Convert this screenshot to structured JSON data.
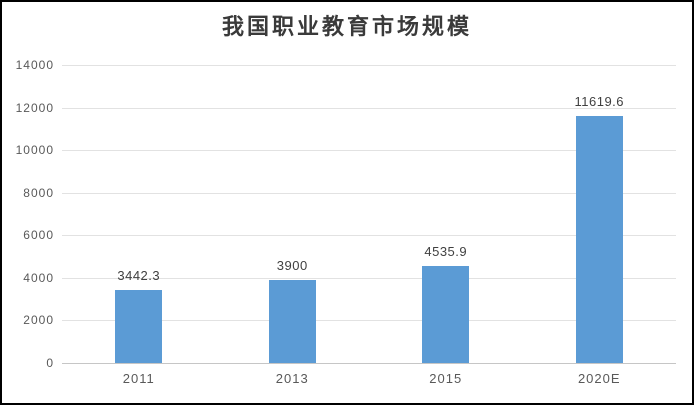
{
  "chart_data": {
    "type": "bar",
    "title": "我国职业教育市场规模",
    "categories": [
      "2011",
      "2013",
      "2015",
      "2020E"
    ],
    "values": [
      3442.3,
      3900,
      4535.9,
      11619.6
    ],
    "value_labels": [
      "3442.3",
      "3900",
      "4535.9",
      "11619.6"
    ],
    "xlabel": "",
    "ylabel": "",
    "ylim": [
      0,
      14000
    ],
    "ytick_step": 2000,
    "ytick_labels": [
      "0",
      "2000",
      "4000",
      "6000",
      "8000",
      "10000",
      "12000",
      "14000"
    ],
    "grid": true,
    "legend_position": "none",
    "colors": {
      "bar": "#5B9BD5",
      "gridline": "#E2E2E2",
      "axis_line": "#C6C6C6",
      "tick_label": "#595959",
      "data_label": "#404040",
      "title": "#3A3A3A",
      "background": "#FFFFFF",
      "border": "#000000"
    }
  }
}
